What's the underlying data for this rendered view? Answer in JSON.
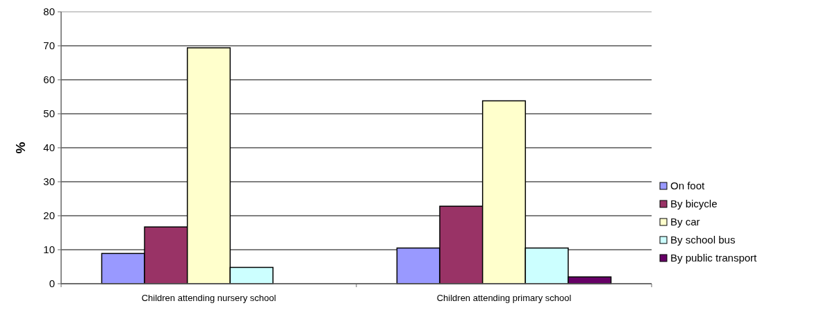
{
  "chart_data": {
    "type": "bar",
    "ylabel": "%",
    "categories": [
      "Children attending nursery school",
      "Children attending primary school"
    ],
    "series": [
      {
        "name": "On foot",
        "color": "#9999ff",
        "values": [
          8.9,
          10.5
        ]
      },
      {
        "name": "By bicycle",
        "color": "#993366",
        "values": [
          16.7,
          22.8
        ]
      },
      {
        "name": "By car",
        "color": "#ffffcc",
        "values": [
          69.4,
          53.8
        ]
      },
      {
        "name": "By school bus",
        "color": "#ccffff",
        "values": [
          4.8,
          10.5
        ]
      },
      {
        "name": "By public transport",
        "color": "#660066",
        "values": [
          0,
          2.0
        ]
      }
    ],
    "ylim": [
      0,
      80
    ],
    "yticks": [
      0,
      10,
      20,
      30,
      40,
      50,
      60,
      70,
      80
    ],
    "grid": "y",
    "legend": "right"
  }
}
